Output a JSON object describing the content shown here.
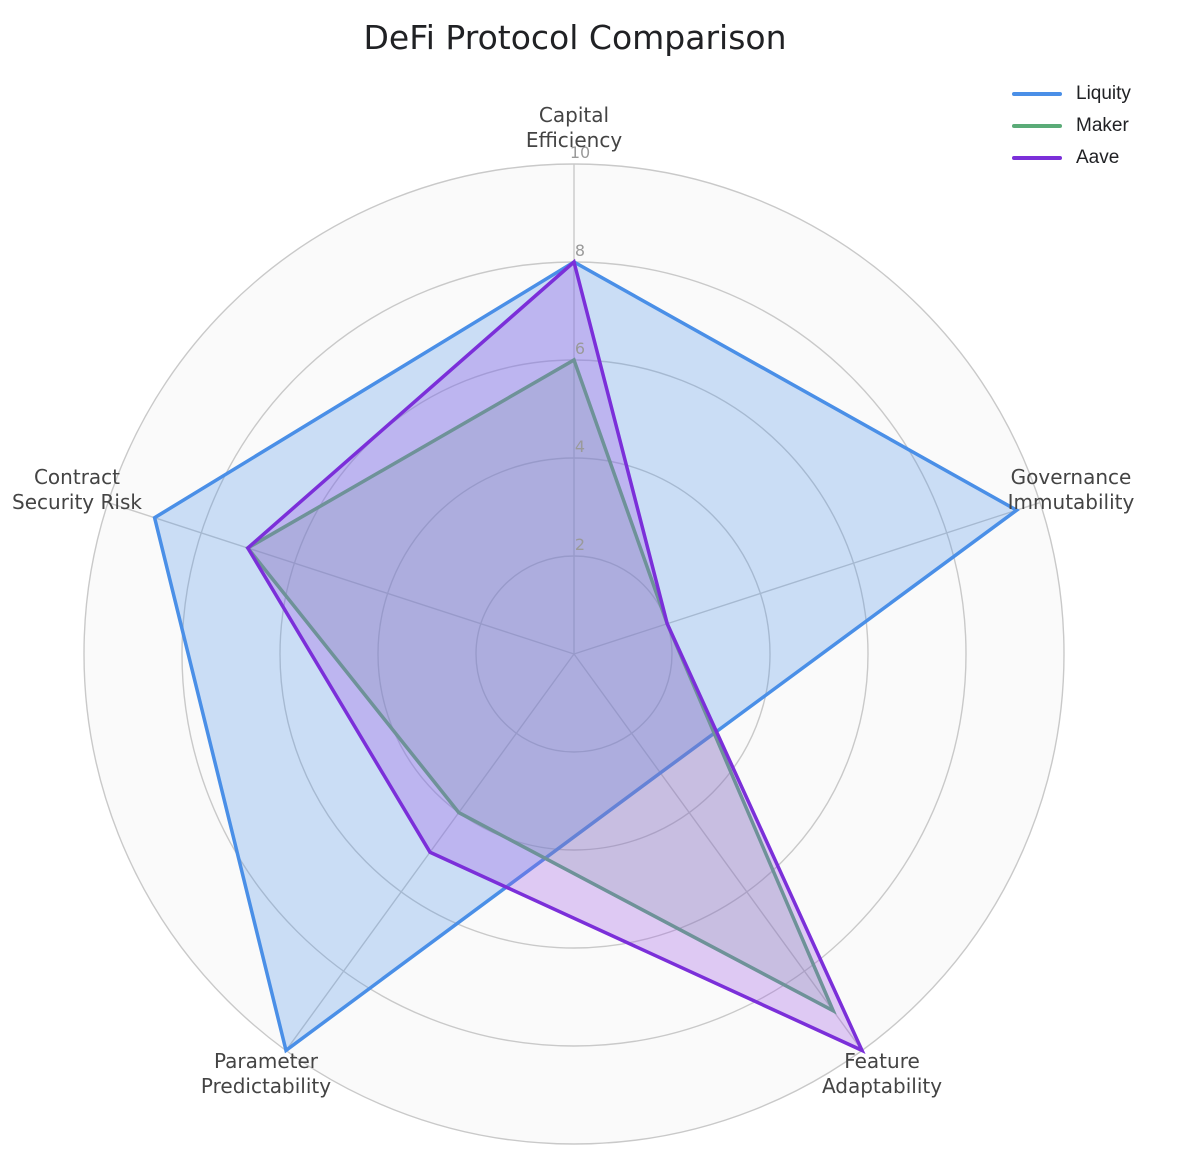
{
  "chart_data": {
    "type": "radar",
    "title": "DeFi Protocol Comparison",
    "axes": [
      [
        "Capital",
        "Efficiency"
      ],
      [
        "Governance",
        "Immutability"
      ],
      [
        "Feature",
        "Adaptability"
      ],
      [
        "Parameter",
        "Predictability"
      ],
      [
        "Contract",
        "Security Risk"
      ]
    ],
    "radial_range": [
      0,
      10
    ],
    "ticks": [
      "2",
      "4",
      "6",
      "8",
      "10"
    ],
    "tick_values": [
      2,
      4,
      6,
      8,
      10
    ],
    "grid": true,
    "legend_position": "top-right",
    "series": [
      {
        "name": "Liquity",
        "values": [
          8,
          9.5,
          3,
          10,
          9
        ],
        "color": "#4a8fe7"
      },
      {
        "name": "Maker",
        "values": [
          6,
          2,
          9,
          4,
          7
        ],
        "color": "#5aab77"
      },
      {
        "name": "Aave",
        "values": [
          8,
          2,
          10,
          5,
          7
        ],
        "color": "#7b2fd9"
      }
    ]
  }
}
